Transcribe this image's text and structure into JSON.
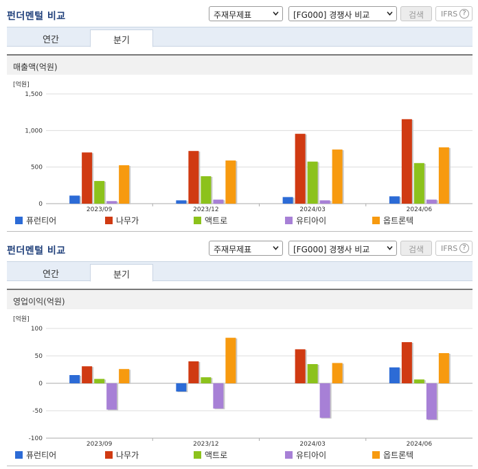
{
  "panels": [
    {
      "title": "펀더멘털 비교",
      "statement_select": "주재무제표",
      "compare_select": "[FG000] 경쟁사 비교",
      "search_button": "검색",
      "ifrs_button": "IFRS",
      "help_glyph": "?",
      "tabs": [
        "연간",
        "분기"
      ],
      "active_tab": "분기",
      "metric_label": "매출액(억원)"
    },
    {
      "title": "펀더멘털 비교",
      "statement_select": "주재무제표",
      "compare_select": "[FG000] 경쟁사 비교",
      "search_button": "검색",
      "ifrs_button": "IFRS",
      "help_glyph": "?",
      "tabs": [
        "연간",
        "분기"
      ],
      "active_tab": "분기",
      "metric_label": "영업이익(억원)"
    }
  ],
  "chart_data": [
    {
      "type": "bar",
      "unit_label": "[억원]",
      "categories": [
        "2023/09",
        "2023/12",
        "2024/03",
        "2024/06"
      ],
      "ylim": [
        0,
        1500
      ],
      "yticks": [
        0,
        500,
        1000,
        1500
      ],
      "ytick_labels": [
        "0",
        "500",
        "1,000",
        "1,500"
      ],
      "grid": true,
      "legend_position": "bottom",
      "series": [
        {
          "name": "퓨런티어",
          "color": "#2c6bd6",
          "values": [
            110,
            45,
            90,
            100
          ]
        },
        {
          "name": "나무가",
          "color": "#d03a12",
          "values": [
            700,
            720,
            955,
            1155
          ]
        },
        {
          "name": "액트로",
          "color": "#8cc21c",
          "values": [
            310,
            375,
            575,
            555
          ]
        },
        {
          "name": "유티아이",
          "color": "#a780d6",
          "values": [
            35,
            55,
            45,
            55
          ]
        },
        {
          "name": "옵트론텍",
          "color": "#f79a0f",
          "values": [
            525,
            590,
            740,
            770
          ]
        }
      ]
    },
    {
      "type": "bar",
      "unit_label": "[억원]",
      "categories": [
        "2023/09",
        "2023/12",
        "2024/03",
        "2024/06"
      ],
      "ylim": [
        -100,
        100
      ],
      "yticks": [
        -100,
        -50,
        0,
        50,
        100
      ],
      "ytick_labels": [
        "-100",
        "-50",
        "0",
        "50",
        "100"
      ],
      "grid": true,
      "legend_position": "bottom",
      "series": [
        {
          "name": "퓨런티어",
          "color": "#2c6bd6",
          "values": [
            15,
            -15,
            0,
            29
          ]
        },
        {
          "name": "나무가",
          "color": "#d03a12",
          "values": [
            31,
            40,
            62,
            75
          ]
        },
        {
          "name": "액트로",
          "color": "#8cc21c",
          "values": [
            8,
            11,
            35,
            7
          ]
        },
        {
          "name": "유티아이",
          "color": "#a780d6",
          "values": [
            -48,
            -46,
            -63,
            -66
          ]
        },
        {
          "name": "옵트론텍",
          "color": "#f79a0f",
          "values": [
            26,
            83,
            37,
            55
          ]
        }
      ]
    }
  ]
}
